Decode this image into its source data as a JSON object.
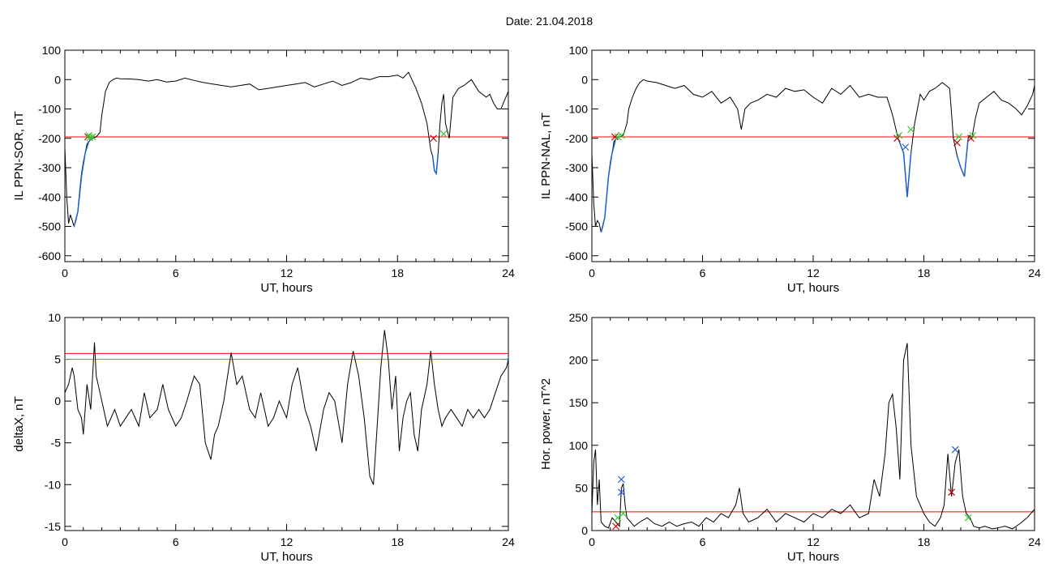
{
  "header": {
    "date_text": "Date:  21.04.2018"
  },
  "colors": {
    "data_line": "#000000",
    "threshold": "#ff0000",
    "threshold2": "#00aaff",
    "segment": "#2060d0",
    "marker_red": "#cc0000",
    "marker_green": "#33cc33",
    "marker_blue": "#2060d0"
  },
  "chart_data": [
    {
      "type": "line",
      "id": "sor",
      "title": "",
      "xlabel": "UT, hours",
      "ylabel": "IL PPN-SOR, nT",
      "xlim": [
        0,
        24
      ],
      "ylim": [
        -620,
        100
      ],
      "xticks": [
        0,
        6,
        12,
        18,
        24
      ],
      "yticks": [
        100,
        0,
        -100,
        -200,
        -300,
        -400,
        -500,
        -600
      ],
      "thresholds": [
        {
          "value": -195,
          "color": "red"
        }
      ],
      "series": [
        {
          "x": [
            0,
            0.1,
            0.2,
            0.3,
            0.4,
            0.5,
            0.6,
            0.7,
            0.8,
            0.9,
            1.0,
            1.1,
            1.2,
            1.3,
            1.5,
            1.7,
            1.9,
            2.0,
            2.1,
            2.2,
            2.4,
            2.6,
            2.8,
            3.0,
            3.5,
            4.0,
            4.5,
            5.0,
            5.5,
            6.0,
            6.5,
            7.0,
            7.5,
            8.0,
            8.5,
            9.0,
            9.5,
            10.0,
            10.5,
            11.0,
            11.5,
            12.0,
            12.5,
            13.0,
            13.5,
            14.0,
            14.5,
            15.0,
            15.5,
            16.0,
            16.5,
            17.0,
            17.5,
            18.0,
            18.3,
            18.6,
            19.0,
            19.3,
            19.6,
            19.8,
            19.9,
            20.0,
            20.1,
            20.2,
            20.3,
            20.4,
            20.5,
            20.6,
            20.8,
            21.0,
            21.3,
            21.6,
            22.0,
            22.4,
            22.8,
            23.0,
            23.2,
            23.4,
            23.6,
            23.8,
            24.0
          ],
          "y": [
            -230,
            -400,
            -490,
            -460,
            -480,
            -500,
            -480,
            -450,
            -380,
            -320,
            -280,
            -250,
            -220,
            -210,
            -200,
            -195,
            -180,
            -120,
            -80,
            -40,
            -10,
            0,
            5,
            3,
            2,
            0,
            -5,
            0,
            -8,
            -5,
            5,
            -3,
            -10,
            -15,
            -20,
            -25,
            -20,
            -15,
            -35,
            -30,
            -25,
            -20,
            -15,
            -10,
            -25,
            -15,
            -5,
            -20,
            -10,
            5,
            0,
            10,
            10,
            15,
            5,
            25,
            -30,
            -80,
            -150,
            -240,
            -260,
            -310,
            -320,
            -250,
            -150,
            -80,
            -50,
            -150,
            -200,
            -60,
            -30,
            -20,
            0,
            -40,
            -60,
            -50,
            -80,
            -100,
            -100,
            -70,
            -40
          ]
        }
      ],
      "segments_blue": [
        {
          "x": [
            0.5,
            0.7,
            0.9,
            1.1,
            1.3,
            1.5
          ],
          "y": [
            -500,
            -450,
            -330,
            -250,
            -210,
            -200
          ]
        },
        {
          "x": [
            19.9,
            20.0,
            20.1,
            20.2
          ],
          "y": [
            -260,
            -310,
            -320,
            -250
          ]
        }
      ],
      "markers": [
        {
          "x": 1.25,
          "y": -195,
          "color": "red"
        },
        {
          "x": 1.35,
          "y": -198,
          "color": "green"
        },
        {
          "x": 1.5,
          "y": -195,
          "color": "green"
        },
        {
          "x": 1.3,
          "y": -190,
          "color": "green"
        },
        {
          "x": 19.95,
          "y": -200,
          "color": "red"
        },
        {
          "x": 20.5,
          "y": -185,
          "color": "green"
        }
      ]
    },
    {
      "type": "line",
      "id": "nal",
      "title": "",
      "xlabel": "UT, hours",
      "ylabel": "IL PPN-NAL, nT",
      "xlim": [
        0,
        24
      ],
      "ylim": [
        -620,
        100
      ],
      "xticks": [
        0,
        6,
        12,
        18,
        24
      ],
      "yticks": [
        100,
        0,
        -100,
        -200,
        -300,
        -400,
        -500,
        -600
      ],
      "thresholds": [
        {
          "value": -195,
          "color": "red"
        }
      ],
      "series": [
        {
          "x": [
            0,
            0.1,
            0.2,
            0.3,
            0.4,
            0.5,
            0.6,
            0.7,
            0.8,
            0.9,
            1.0,
            1.1,
            1.2,
            1.3,
            1.5,
            1.7,
            1.9,
            2.0,
            2.2,
            2.4,
            2.6,
            2.8,
            3.0,
            3.5,
            4.0,
            4.5,
            5.0,
            5.5,
            6.0,
            6.5,
            7.0,
            7.5,
            7.9,
            8.1,
            8.3,
            8.6,
            9.0,
            9.5,
            10.0,
            10.5,
            11.0,
            11.5,
            12.0,
            12.5,
            13.0,
            13.5,
            14.0,
            14.5,
            15.0,
            15.5,
            16.0,
            16.3,
            16.6,
            16.9,
            17.1,
            17.3,
            17.5,
            17.8,
            18.0,
            18.3,
            18.6,
            19.0,
            19.4,
            19.6,
            19.8,
            20.0,
            20.2,
            20.4,
            20.5,
            20.6,
            20.8,
            21.0,
            21.4,
            21.8,
            22.2,
            22.6,
            23.0,
            23.3,
            23.6,
            23.9,
            24.0
          ],
          "y": [
            -250,
            -420,
            -500,
            -480,
            -490,
            -520,
            -500,
            -470,
            -400,
            -330,
            -280,
            -250,
            -210,
            -200,
            -195,
            -190,
            -150,
            -100,
            -60,
            -30,
            -10,
            0,
            -5,
            -10,
            -20,
            -30,
            -20,
            -50,
            -60,
            -40,
            -80,
            -60,
            -100,
            -170,
            -100,
            -80,
            -70,
            -50,
            -60,
            -30,
            -40,
            -35,
            -60,
            -80,
            -30,
            -50,
            -20,
            -60,
            -50,
            -60,
            -60,
            -120,
            -200,
            -250,
            -400,
            -250,
            -150,
            -50,
            -70,
            -40,
            -30,
            -10,
            -30,
            -200,
            -260,
            -300,
            -330,
            -200,
            -190,
            -200,
            -130,
            -80,
            -60,
            -40,
            -70,
            -80,
            -100,
            -120,
            -90,
            -50,
            -20
          ]
        }
      ],
      "segments_blue": [
        {
          "x": [
            0.5,
            0.7,
            0.9,
            1.1,
            1.3,
            1.5
          ],
          "y": [
            -520,
            -470,
            -330,
            -250,
            -200,
            -195
          ]
        },
        {
          "x": [
            16.6,
            16.9,
            17.1,
            17.3
          ],
          "y": [
            -200,
            -250,
            -400,
            -250
          ]
        },
        {
          "x": [
            19.8,
            20.0,
            20.2,
            20.4
          ],
          "y": [
            -260,
            -300,
            -330,
            -200
          ]
        }
      ],
      "markers": [
        {
          "x": 1.25,
          "y": -195,
          "color": "red"
        },
        {
          "x": 1.4,
          "y": -195,
          "color": "green"
        },
        {
          "x": 1.6,
          "y": -190,
          "color": "green"
        },
        {
          "x": 16.55,
          "y": -200,
          "color": "red"
        },
        {
          "x": 16.65,
          "y": -190,
          "color": "green"
        },
        {
          "x": 17.0,
          "y": -230,
          "color": "blue"
        },
        {
          "x": 17.3,
          "y": -170,
          "color": "green"
        },
        {
          "x": 19.8,
          "y": -215,
          "color": "red"
        },
        {
          "x": 19.9,
          "y": -195,
          "color": "green"
        },
        {
          "x": 20.55,
          "y": -200,
          "color": "red"
        },
        {
          "x": 20.65,
          "y": -190,
          "color": "green"
        }
      ]
    },
    {
      "type": "line",
      "id": "deltax",
      "title": "",
      "xlabel": "UT, hours",
      "ylabel": "deltaX, nT",
      "xlim": [
        0,
        24
      ],
      "ylim": [
        -15.5,
        10
      ],
      "xticks": [
        0,
        6,
        12,
        18,
        24
      ],
      "yticks": [
        10,
        5,
        0,
        -5,
        -10,
        -15
      ],
      "thresholds": [
        {
          "value": 5.7,
          "color": "red"
        },
        {
          "value": 5.0,
          "color": "blue"
        }
      ],
      "series": [
        {
          "x": [
            0,
            0.2,
            0.4,
            0.5,
            0.7,
            0.9,
            1.0,
            1.2,
            1.4,
            1.6,
            1.7,
            1.9,
            2.1,
            2.3,
            2.5,
            2.7,
            3.0,
            3.3,
            3.6,
            4.0,
            4.3,
            4.6,
            5.0,
            5.3,
            5.6,
            6.0,
            6.3,
            6.6,
            7.0,
            7.3,
            7.6,
            7.9,
            8.1,
            8.3,
            8.6,
            9.0,
            9.3,
            9.6,
            10.0,
            10.3,
            10.6,
            11.0,
            11.3,
            11.6,
            12.0,
            12.3,
            12.6,
            13.0,
            13.3,
            13.6,
            14.0,
            14.3,
            14.6,
            15.0,
            15.3,
            15.6,
            15.9,
            16.2,
            16.5,
            16.7,
            16.9,
            17.1,
            17.3,
            17.5,
            17.7,
            17.9,
            18.1,
            18.3,
            18.5,
            18.7,
            18.9,
            19.1,
            19.3,
            19.6,
            19.8,
            20.0,
            20.2,
            20.4,
            20.6,
            20.9,
            21.2,
            21.5,
            21.8,
            22.1,
            22.4,
            22.7,
            23.0,
            23.3,
            23.6,
            23.9,
            24.0
          ],
          "y": [
            1,
            2,
            4,
            3,
            -1,
            -2,
            -4,
            2,
            -1,
            7,
            3,
            1,
            -1,
            -3,
            -2,
            -1,
            -3,
            -2,
            -1,
            -3,
            1,
            -2,
            -1,
            2,
            -1,
            -3,
            -2,
            0,
            3,
            2,
            -5,
            -7,
            -4,
            -3,
            0,
            5.8,
            2,
            3,
            -1,
            -2,
            1,
            -3,
            -2,
            0,
            -2,
            2,
            4,
            -1,
            -3,
            -6,
            -1,
            1,
            0,
            -5,
            2,
            6,
            3,
            -2,
            -9,
            -10,
            -3,
            4,
            8.5,
            5,
            -1,
            3,
            -6,
            -2,
            0,
            1,
            -4,
            -6,
            -1,
            2,
            6,
            2,
            -1,
            -3,
            -2,
            -1,
            -2,
            -3,
            -1,
            -2,
            -1,
            -2,
            -1,
            1,
            3,
            4,
            5
          ]
        }
      ],
      "segments_blue": [],
      "markers": []
    },
    {
      "type": "line",
      "id": "hpower",
      "title": "",
      "xlabel": "UT, hours",
      "ylabel": "Hor. power, nT^2",
      "xlim": [
        0,
        24
      ],
      "ylim": [
        0,
        250
      ],
      "xticks": [
        0,
        6,
        12,
        18,
        24
      ],
      "yticks": [
        250,
        200,
        150,
        100,
        50,
        0
      ],
      "thresholds": [
        {
          "value": 22,
          "color": "red"
        }
      ],
      "series": [
        {
          "x": [
            0,
            0.1,
            0.2,
            0.3,
            0.4,
            0.5,
            0.7,
            0.9,
            1.1,
            1.3,
            1.5,
            1.6,
            1.7,
            1.8,
            1.9,
            2.1,
            2.3,
            2.6,
            3.0,
            3.4,
            3.8,
            4.2,
            4.6,
            5.0,
            5.4,
            5.8,
            6.2,
            6.6,
            7.0,
            7.4,
            7.8,
            8.0,
            8.2,
            8.5,
            9.0,
            9.5,
            10.0,
            10.5,
            11.0,
            11.5,
            12.0,
            12.5,
            13.0,
            13.5,
            14.0,
            14.5,
            15.0,
            15.3,
            15.6,
            15.9,
            16.1,
            16.3,
            16.5,
            16.7,
            16.9,
            17.1,
            17.3,
            17.6,
            18.0,
            18.3,
            18.6,
            18.9,
            19.1,
            19.3,
            19.5,
            19.7,
            19.9,
            20.1,
            20.3,
            20.5,
            20.7,
            21.0,
            21.3,
            21.7,
            22.0,
            22.4,
            22.8,
            23.2,
            23.6,
            24.0
          ],
          "y": [
            20,
            80,
            95,
            30,
            60,
            10,
            5,
            3,
            15,
            10,
            5,
            50,
            55,
            30,
            15,
            10,
            5,
            10,
            15,
            8,
            5,
            10,
            5,
            8,
            10,
            5,
            15,
            10,
            20,
            15,
            30,
            50,
            20,
            10,
            15,
            25,
            10,
            20,
            15,
            10,
            20,
            15,
            25,
            20,
            30,
            15,
            20,
            60,
            40,
            90,
            150,
            160,
            120,
            60,
            200,
            220,
            100,
            40,
            20,
            10,
            5,
            15,
            30,
            90,
            40,
            80,
            95,
            40,
            20,
            15,
            5,
            3,
            5,
            2,
            3,
            5,
            2,
            8,
            15,
            25
          ]
        }
      ],
      "segments_blue": [],
      "markers": [
        {
          "x": 1.3,
          "y": 5,
          "color": "red"
        },
        {
          "x": 1.4,
          "y": 15,
          "color": "green"
        },
        {
          "x": 1.6,
          "y": 60,
          "color": "blue"
        },
        {
          "x": 1.6,
          "y": 45,
          "color": "blue"
        },
        {
          "x": 1.7,
          "y": 20,
          "color": "green"
        },
        {
          "x": 19.5,
          "y": 45,
          "color": "red"
        },
        {
          "x": 19.7,
          "y": 95,
          "color": "blue"
        },
        {
          "x": 20.4,
          "y": 15,
          "color": "green"
        }
      ]
    }
  ]
}
